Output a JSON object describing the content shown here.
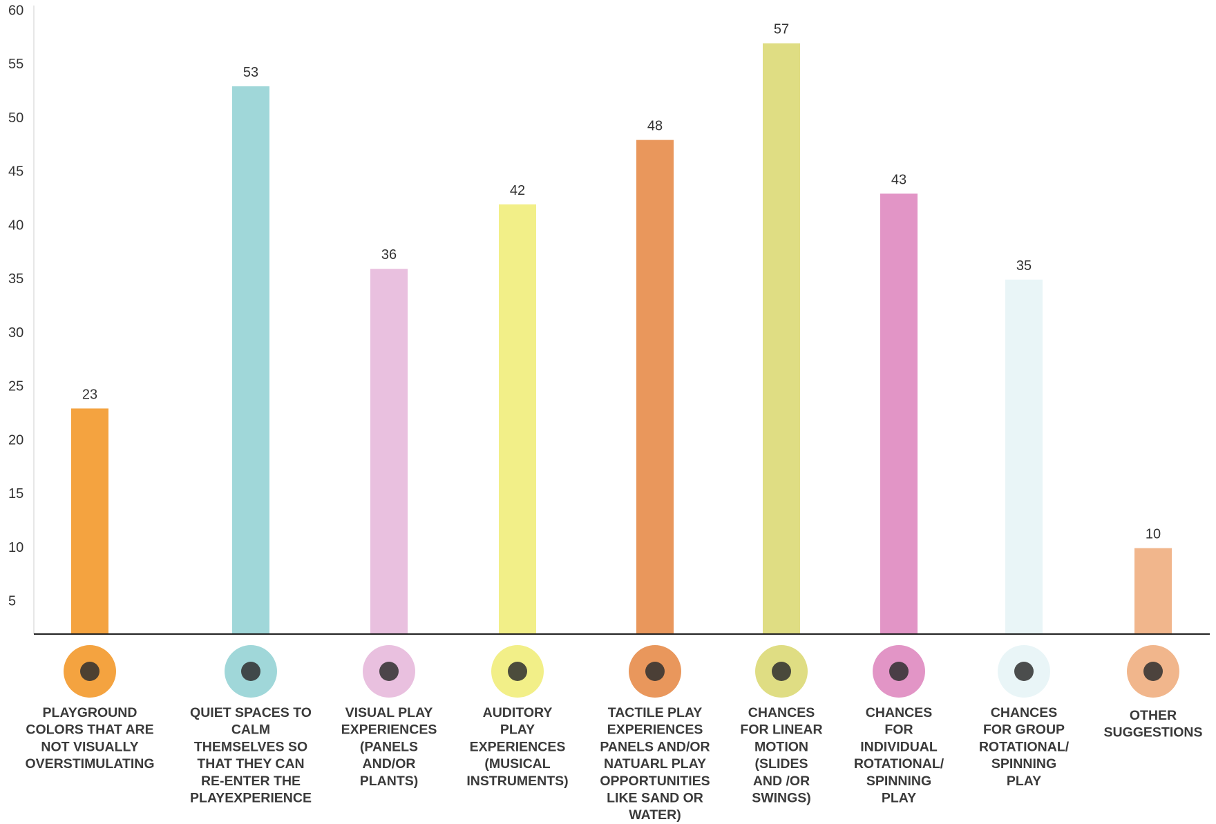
{
  "chart_data": {
    "type": "bar",
    "categories": [
      [
        "PLAYGROUND",
        "COLORS THAT ARE",
        "NOT VISUALLY",
        "OVERSTIMULATING"
      ],
      [
        "QUIET SPACES TO",
        "CALM",
        "THEMSELVES SO",
        "THAT THEY CAN",
        "RE-ENTER THE",
        "PLAYEXPERIENCE"
      ],
      [
        "VISUAL PLAY",
        "EXPERIENCES",
        "(PANELS",
        "AND/OR",
        "PLANTS)"
      ],
      [
        "AUDITORY",
        "PLAY",
        "EXPERIENCES",
        "(MUSICAL",
        "INSTRUMENTS)"
      ],
      [
        "TACTILE PLAY",
        "EXPERIENCES",
        "PANELS AND/OR",
        "NATUARL PLAY",
        "OPPORTUNITIES",
        "LIKE SAND OR",
        "WATER)"
      ],
      [
        "CHANCES",
        "FOR LINEAR",
        "MOTION",
        "(SLIDES",
        "AND /OR",
        "SWINGS)"
      ],
      [
        "CHANCES",
        "FOR",
        "INDIVIDUAL",
        "ROTATIONAL/",
        "SPINNING",
        "PLAY"
      ],
      [
        "CHANCES",
        "FOR GROUP",
        "ROTATIONAL/",
        "SPINNING",
        "PLAY"
      ],
      [
        "OTHER",
        "SUGGESTIONS"
      ]
    ],
    "values": [
      23,
      53,
      36,
      42,
      48,
      57,
      43,
      35,
      10
    ],
    "colors": [
      "#f4a340",
      "#a0d7d9",
      "#e9c0df",
      "#f2ef88",
      "#e9975c",
      "#dfdd83",
      "#e295c6",
      "#e9f5f7",
      "#f1b68c"
    ],
    "ylim": [
      2,
      60
    ],
    "yticks": [
      5,
      10,
      15,
      20,
      25,
      30,
      35,
      40,
      45,
      50,
      55,
      60
    ],
    "grid": false
  }
}
